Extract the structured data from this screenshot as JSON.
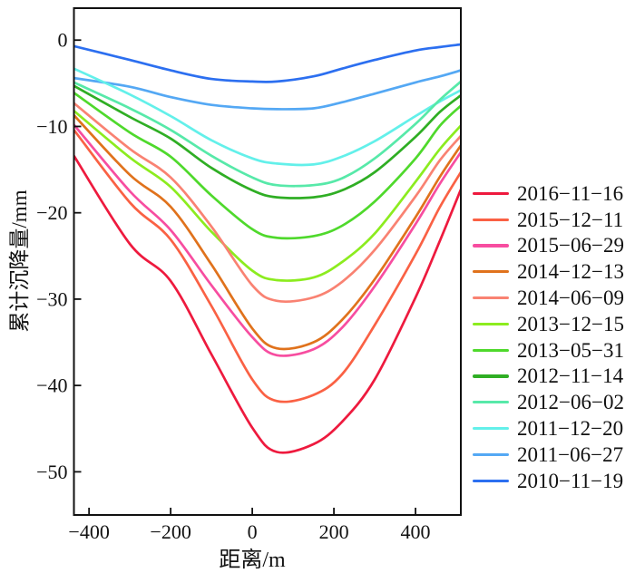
{
  "figure": {
    "background": "#ffffff",
    "axis_color": "#111111",
    "text_color": "#111111"
  },
  "chart_data": {
    "type": "line",
    "title": "",
    "xlabel": "距离/m",
    "ylabel": "累计沉降量/mm",
    "xlim": [
      -437,
      511
    ],
    "ylim": [
      -55,
      3.7
    ],
    "grid": false,
    "legend_position": "right-outside",
    "x_ticks": [
      {
        "value": -400,
        "label": "−400"
      },
      {
        "value": -200,
        "label": "−200"
      },
      {
        "value": 0,
        "label": "0"
      },
      {
        "value": 200,
        "label": "200"
      },
      {
        "value": 400,
        "label": "400"
      }
    ],
    "y_ticks": [
      {
        "value": 0,
        "label": "0"
      },
      {
        "value": -10,
        "label": "−10"
      },
      {
        "value": -20,
        "label": "−20"
      },
      {
        "value": -30,
        "label": "−30"
      },
      {
        "value": -40,
        "label": "−40"
      },
      {
        "value": -50,
        "label": "−50"
      }
    ],
    "series": [
      {
        "label": "2016−11−16",
        "color": "#ee1a3e",
        "points": [
          [
            -437,
            -13.4
          ],
          [
            -300,
            -23.6
          ],
          [
            -200,
            -27.9
          ],
          [
            -100,
            -36.4
          ],
          [
            0,
            -44.9
          ],
          [
            60,
            -47.7
          ],
          [
            150,
            -46.8
          ],
          [
            220,
            -44.2
          ],
          [
            300,
            -39.3
          ],
          [
            400,
            -29.8
          ],
          [
            460,
            -23.2
          ],
          [
            511,
            -17.3
          ]
        ]
      },
      {
        "label": "2015−12−11",
        "color": "#fa6144",
        "points": [
          [
            -437,
            -10.4
          ],
          [
            -300,
            -18.8
          ],
          [
            -200,
            -23.1
          ],
          [
            -100,
            -30.8
          ],
          [
            0,
            -39.3
          ],
          [
            60,
            -41.8
          ],
          [
            150,
            -41.1
          ],
          [
            220,
            -38.7
          ],
          [
            300,
            -33.0
          ],
          [
            400,
            -24.8
          ],
          [
            460,
            -19.3
          ],
          [
            511,
            -15.3
          ]
        ]
      },
      {
        "label": "2015−06−29",
        "color": "#f74da0",
        "points": [
          [
            -437,
            -9.8
          ],
          [
            -300,
            -17.5
          ],
          [
            -200,
            -22.0
          ],
          [
            -100,
            -28.4
          ],
          [
            0,
            -34.4
          ],
          [
            60,
            -36.5
          ],
          [
            150,
            -35.8
          ],
          [
            220,
            -33.3
          ],
          [
            300,
            -28.5
          ],
          [
            400,
            -21.3
          ],
          [
            460,
            -16.6
          ],
          [
            511,
            -13.0
          ]
        ]
      },
      {
        "label": "2014−12−13",
        "color": "#e0721c",
        "points": [
          [
            -437,
            -8.7
          ],
          [
            -300,
            -15.6
          ],
          [
            -200,
            -19.3
          ],
          [
            -100,
            -26.0
          ],
          [
            0,
            -33.4
          ],
          [
            60,
            -35.7
          ],
          [
            150,
            -35.0
          ],
          [
            220,
            -32.4
          ],
          [
            300,
            -27.7
          ],
          [
            400,
            -20.5
          ],
          [
            460,
            -15.8
          ],
          [
            511,
            -12.2
          ]
        ]
      },
      {
        "label": "2014−06−09",
        "color": "#f98272",
        "points": [
          [
            -437,
            -7.3
          ],
          [
            -300,
            -12.6
          ],
          [
            -200,
            -15.9
          ],
          [
            -100,
            -21.6
          ],
          [
            0,
            -28.4
          ],
          [
            60,
            -30.2
          ],
          [
            150,
            -29.8
          ],
          [
            220,
            -28.0
          ],
          [
            300,
            -24.3
          ],
          [
            400,
            -18.1
          ],
          [
            460,
            -13.9
          ],
          [
            511,
            -11.1
          ]
        ]
      },
      {
        "label": "2013−12−15",
        "color": "#8cec1f",
        "points": [
          [
            -437,
            -8.2
          ],
          [
            -300,
            -13.6
          ],
          [
            -200,
            -17.0
          ],
          [
            -100,
            -22.2
          ],
          [
            0,
            -26.7
          ],
          [
            60,
            -27.8
          ],
          [
            150,
            -27.5
          ],
          [
            220,
            -25.7
          ],
          [
            300,
            -22.4
          ],
          [
            400,
            -16.4
          ],
          [
            460,
            -12.6
          ],
          [
            511,
            -9.9
          ]
        ]
      },
      {
        "label": "2013−05−31",
        "color": "#4fd92c",
        "points": [
          [
            -437,
            -6.1
          ],
          [
            -300,
            -10.7
          ],
          [
            -200,
            -13.5
          ],
          [
            -100,
            -18.0
          ],
          [
            0,
            -21.9
          ],
          [
            60,
            -22.9
          ],
          [
            150,
            -22.7
          ],
          [
            220,
            -21.5
          ],
          [
            300,
            -18.7
          ],
          [
            400,
            -13.7
          ],
          [
            460,
            -9.9
          ],
          [
            511,
            -7.6
          ]
        ]
      },
      {
        "label": "2012−11−14",
        "color": "#2fae24",
        "points": [
          [
            -437,
            -5.3
          ],
          [
            -300,
            -8.9
          ],
          [
            -200,
            -11.4
          ],
          [
            -100,
            -14.8
          ],
          [
            0,
            -17.4
          ],
          [
            60,
            -18.2
          ],
          [
            150,
            -18.2
          ],
          [
            220,
            -17.4
          ],
          [
            300,
            -15.3
          ],
          [
            400,
            -11.2
          ],
          [
            460,
            -8.3
          ],
          [
            511,
            -6.4
          ]
        ]
      },
      {
        "label": "2012−06−02",
        "color": "#57e9a9",
        "points": [
          [
            -437,
            -4.9
          ],
          [
            -300,
            -7.9
          ],
          [
            -200,
            -10.4
          ],
          [
            -100,
            -13.4
          ],
          [
            0,
            -15.9
          ],
          [
            60,
            -16.8
          ],
          [
            150,
            -16.8
          ],
          [
            220,
            -16.0
          ],
          [
            300,
            -13.7
          ],
          [
            400,
            -9.7
          ],
          [
            460,
            -6.9
          ],
          [
            511,
            -4.8
          ]
        ]
      },
      {
        "label": "2011−12−20",
        "color": "#63f0ea",
        "points": [
          [
            -437,
            -3.3
          ],
          [
            -300,
            -6.3
          ],
          [
            -200,
            -8.8
          ],
          [
            -100,
            -11.6
          ],
          [
            0,
            -13.7
          ],
          [
            60,
            -14.3
          ],
          [
            150,
            -14.4
          ],
          [
            220,
            -13.5
          ],
          [
            300,
            -11.7
          ],
          [
            400,
            -8.8
          ],
          [
            460,
            -7.1
          ],
          [
            511,
            -5.8
          ]
        ]
      },
      {
        "label": "2011−06−27",
        "color": "#54a8f4",
        "points": [
          [
            -437,
            -4.4
          ],
          [
            -300,
            -5.4
          ],
          [
            -200,
            -6.6
          ],
          [
            -100,
            -7.5
          ],
          [
            0,
            -7.9
          ],
          [
            60,
            -8.0
          ],
          [
            150,
            -7.9
          ],
          [
            220,
            -7.2
          ],
          [
            300,
            -6.2
          ],
          [
            400,
            -4.9
          ],
          [
            460,
            -4.2
          ],
          [
            511,
            -3.5
          ]
        ]
      },
      {
        "label": "2010−11−19",
        "color": "#2c6ff0",
        "points": [
          [
            -437,
            -0.7
          ],
          [
            -300,
            -2.3
          ],
          [
            -200,
            -3.5
          ],
          [
            -100,
            -4.5
          ],
          [
            0,
            -4.8
          ],
          [
            60,
            -4.8
          ],
          [
            150,
            -4.2
          ],
          [
            220,
            -3.3
          ],
          [
            300,
            -2.3
          ],
          [
            400,
            -1.2
          ],
          [
            460,
            -0.8
          ],
          [
            511,
            -0.5
          ]
        ]
      }
    ]
  }
}
